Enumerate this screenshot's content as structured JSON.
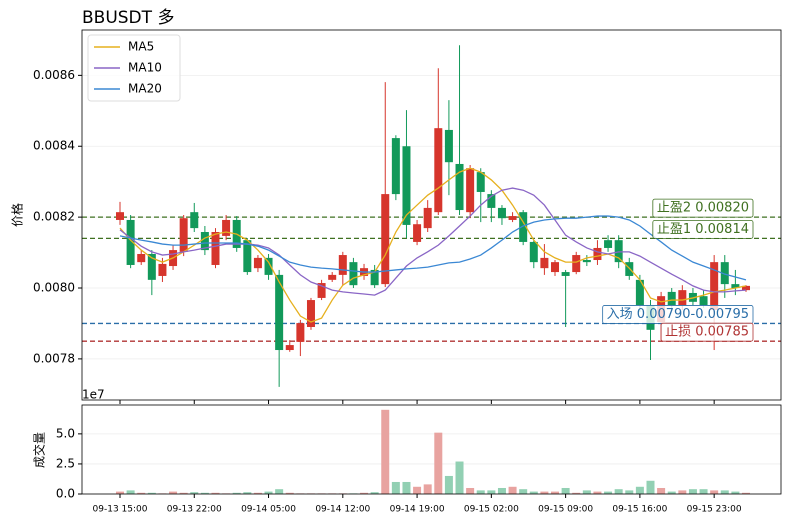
{
  "chart_data": [
    {
      "type": "candlestick",
      "title": "BBUSDT 多",
      "ylabel": "价格",
      "categories": [
        "09-13 15:00",
        null,
        null,
        null,
        null,
        null,
        null,
        "09-13 22:00",
        null,
        null,
        null,
        null,
        null,
        null,
        "09-14 05:00",
        null,
        null,
        null,
        null,
        null,
        null,
        "09-14 12:00",
        null,
        null,
        null,
        null,
        null,
        null,
        "09-14 19:00",
        null,
        null,
        null,
        null,
        null,
        null,
        "09-15 02:00",
        null,
        null,
        null,
        null,
        null,
        null,
        "09-15 09:00",
        null,
        null,
        null,
        null,
        null,
        null,
        "09-15 16:00",
        null,
        null,
        null,
        null,
        null,
        null,
        "09-15 23:00",
        null,
        null,
        null
      ],
      "open": [
        0.008192,
        0.008192,
        0.008073,
        0.008096,
        0.008034,
        0.008062,
        0.008102,
        0.008214,
        0.008158,
        0.008065,
        0.008147,
        0.008192,
        0.008135,
        0.008056,
        0.008085,
        0.008037,
        0.007825,
        0.007848,
        0.00789,
        0.007972,
        0.008023,
        0.008037,
        0.008073,
        0.008034,
        0.008051,
        0.008011,
        0.008423,
        0.0084,
        0.00813,
        0.008169,
        0.008214,
        0.008446,
        0.00835,
        0.008214,
        0.008327,
        0.008265,
        0.008226,
        0.008192,
        0.008214,
        0.00813,
        0.008056,
        0.008045,
        0.008045,
        0.008045,
        0.008079,
        0.008079,
        0.008135,
        0.008135,
        0.008073,
        0.008023,
        0.007952,
        0.007904,
        0.007989,
        0.007952,
        0.007986,
        0.007977,
        0.007938,
        0.008073,
        0.008011,
        0.007994
      ],
      "high": [
        0.008243,
        0.008206,
        0.008107,
        0.008107,
        0.008085,
        0.008121,
        0.008206,
        0.00824,
        0.008175,
        0.008169,
        0.008206,
        0.008203,
        0.008141,
        0.008093,
        0.008096,
        0.008051,
        0.007853,
        0.00791,
        0.007972,
        0.008023,
        0.008045,
        0.008102,
        0.008085,
        0.008068,
        0.008065,
        0.008581,
        0.008431,
        0.008502,
        0.008192,
        0.008248,
        0.00862,
        0.00853,
        0.008685,
        0.008347,
        0.008338,
        0.008276,
        0.008234,
        0.008214,
        0.00822,
        0.008135,
        0.008124,
        0.008079,
        0.008051,
        0.008102,
        0.008093,
        0.008135,
        0.008149,
        0.008149,
        0.008085,
        0.008037,
        0.007966,
        0.007989,
        0.008,
        0.008008,
        0.008,
        0.007994,
        0.008093,
        0.008093,
        0.008051,
        0.008008
      ],
      "low": [
        0.008178,
        0.008056,
        0.008065,
        0.00798,
        0.008017,
        0.008051,
        0.00809,
        0.008158,
        0.008093,
        0.008056,
        0.008135,
        0.008102,
        0.008037,
        0.008045,
        0.008023,
        0.007721,
        0.00782,
        0.007808,
        0.007882,
        0.007966,
        0.008017,
        0.008008,
        0.008,
        0.008023,
        0.008,
        0.008003,
        0.008248,
        0.008141,
        0.008121,
        0.008158,
        0.008206,
        0.008262,
        0.008206,
        0.008197,
        0.008186,
        0.008186,
        0.008178,
        0.008186,
        0.008121,
        0.008056,
        0.008037,
        0.008034,
        0.00789,
        0.008039,
        0.008062,
        0.008065,
        0.008102,
        0.008056,
        0.008023,
        0.007932,
        0.007797,
        0.007853,
        0.007938,
        0.007938,
        0.007949,
        0.007944,
        0.007825,
        0.007972,
        0.00798,
        0.007989
      ],
      "close": [
        0.008214,
        0.008065,
        0.008096,
        0.008023,
        0.008068,
        0.008107,
        0.008197,
        0.008169,
        0.008107,
        0.008158,
        0.008192,
        0.008113,
        0.008045,
        0.008085,
        0.008037,
        0.007825,
        0.007839,
        0.007901,
        0.007966,
        0.008014,
        0.008037,
        0.008093,
        0.008008,
        0.008056,
        0.008008,
        0.008265,
        0.008265,
        0.008178,
        0.00818,
        0.008226,
        0.008451,
        0.008355,
        0.00822,
        0.008338,
        0.008271,
        0.008226,
        0.008197,
        0.008203,
        0.00813,
        0.008073,
        0.008085,
        0.008073,
        0.008034,
        0.008093,
        0.008073,
        0.008113,
        0.008113,
        0.008073,
        0.008034,
        0.007952,
        0.007882,
        0.007977,
        0.007952,
        0.007994,
        0.007961,
        0.007952,
        0.008073,
        0.008011,
        0.008,
        0.008006
      ],
      "up_color": "#d6352c",
      "down_color": "#12995a",
      "series": [
        {
          "name": "MA5",
          "color": "#e6b01e",
          "values": [
            0.008169,
            0.008135,
            0.008107,
            0.008085,
            0.008073,
            0.008085,
            0.008102,
            0.008121,
            0.008141,
            0.008152,
            0.008158,
            0.008152,
            0.008135,
            0.008107,
            0.008073,
            0.008017,
            0.007966,
            0.007921,
            0.007904,
            0.007915,
            0.007966,
            0.008008,
            0.008028,
            0.008037,
            0.008045,
            0.008093,
            0.008158,
            0.008206,
            0.008234,
            0.008262,
            0.008282,
            0.008305,
            0.008327,
            0.008338,
            0.008327,
            0.008305,
            0.008276,
            0.008234,
            0.008186,
            0.008135,
            0.008102,
            0.008085,
            0.008073,
            0.008073,
            0.008085,
            0.00809,
            0.008096,
            0.008085,
            0.008056,
            0.008023,
            0.007972,
            0.007961,
            0.007966,
            0.007966,
            0.007972,
            0.00798,
            0.007989,
            0.007994,
            0.008,
            0.008006
          ]
        },
        {
          "name": "MA10",
          "color": "#8a66c6",
          "values": [
            0.008164,
            0.008141,
            0.008118,
            0.008102,
            0.008093,
            0.008096,
            0.008102,
            0.008107,
            0.008113,
            0.008118,
            0.008124,
            0.008124,
            0.008124,
            0.008121,
            0.008113,
            0.008093,
            0.008065,
            0.008037,
            0.008017,
            0.008006,
            0.007994,
            0.007989,
            0.007986,
            0.007983,
            0.00798,
            0.007994,
            0.008028,
            0.008062,
            0.008085,
            0.008102,
            0.008121,
            0.008147,
            0.008175,
            0.008203,
            0.008234,
            0.008259,
            0.008276,
            0.008282,
            0.008276,
            0.008262,
            0.008234,
            0.008192,
            0.008149,
            0.00813,
            0.008113,
            0.008102,
            0.008096,
            0.008102,
            0.008102,
            0.00809,
            0.008073,
            0.008056,
            0.008039,
            0.008023,
            0.008006,
            0.007994,
            0.007989,
            0.007989,
            0.007992,
            0.007994
          ]
        },
        {
          "name": "MA20",
          "color": "#3b88d4",
          "values": [
            0.008147,
            0.008141,
            0.008135,
            0.00813,
            0.008124,
            0.008121,
            0.008121,
            0.008124,
            0.008127,
            0.008127,
            0.008127,
            0.008127,
            0.008124,
            0.008118,
            0.008107,
            0.00809,
            0.008073,
            0.008065,
            0.008059,
            0.008056,
            0.008054,
            0.008051,
            0.008048,
            0.008045,
            0.008045,
            0.008048,
            0.008051,
            0.008054,
            0.008056,
            0.008059,
            0.008065,
            0.008071,
            0.008073,
            0.008082,
            0.008093,
            0.008113,
            0.008135,
            0.008158,
            0.008175,
            0.008186,
            0.008192,
            0.008195,
            0.008197,
            0.008197,
            0.0082,
            0.008203,
            0.008203,
            0.0082,
            0.008192,
            0.008175,
            0.008152,
            0.00813,
            0.008107,
            0.00809,
            0.008073,
            0.008062,
            0.008051,
            0.008039,
            0.008031,
            0.008023
          ]
        }
      ],
      "levels": [
        {
          "label": "止盈2 0.00820",
          "value": 0.0082,
          "color": "#3f7020",
          "dash": true
        },
        {
          "label": "止盈1 0.00814",
          "value": 0.00814,
          "color": "#3f7020",
          "dash": true
        },
        {
          "label": "入场 0.00790-0.00795",
          "value": 0.0079,
          "color": "#2a6ea8",
          "dash": true
        },
        {
          "label": "止损 0.00785",
          "value": 0.00785,
          "color": "#b03434",
          "dash": true
        }
      ],
      "ylim": [
        0.007684,
        0.008728
      ],
      "yticks": [
        0.0078,
        {
          "value": 0.008,
          "label": "0.0080"
        },
        0.0082,
        0.0084,
        0.0086
      ],
      "legend": "upper left",
      "grid": true
    },
    {
      "type": "bar",
      "ylabel": "成交量",
      "offset_label": "1e7",
      "values": [
        0.2,
        0.3,
        0.1,
        0.1,
        0.05,
        0.2,
        0.1,
        0.15,
        0.1,
        0.1,
        0.05,
        0.1,
        0.15,
        0.1,
        0.2,
        0.4,
        0.1,
        0.05,
        0.05,
        0.05,
        0.05,
        0.05,
        0.05,
        0.1,
        0.15,
        7.0,
        1.0,
        1.0,
        0.6,
        0.8,
        5.1,
        1.5,
        2.7,
        0.5,
        0.3,
        0.3,
        0.5,
        0.6,
        0.4,
        0.2,
        0.2,
        0.2,
        0.5,
        0.1,
        0.3,
        0.2,
        0.2,
        0.4,
        0.3,
        0.6,
        1.1,
        0.5,
        0.2,
        0.3,
        0.4,
        0.4,
        0.3,
        0.3,
        0.2,
        0.1
      ],
      "up_color": "#e8a3a0",
      "down_color": "#92d0b3",
      "ylim": [
        0,
        7.4
      ],
      "yticks": [
        {
          "value": 0,
          "label": "0.0"
        },
        2.5,
        {
          "value": 5,
          "label": "5.0"
        }
      ],
      "grid": true
    }
  ]
}
